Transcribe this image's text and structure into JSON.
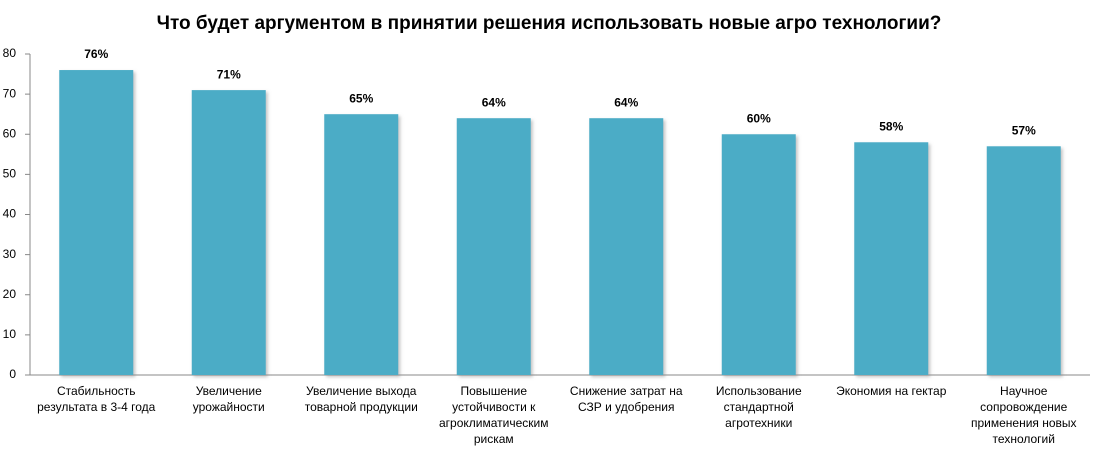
{
  "chart_data": {
    "type": "bar",
    "title": "Что будет аргументом в принятии решения использовать новые агро технологии?",
    "categories": [
      "Стабильность результата в 3-4 года",
      "Увеличение урожайности",
      "Увеличение выхода товарной продукции",
      "Повышение устойчивости к агроклиматическим рискам",
      "Снижение затрат на СЗР и удобрения",
      "Использование стандартной агротехники",
      "Экономия на гектар",
      "Научное сопровождение применения новых технологий"
    ],
    "values": [
      76,
      71,
      65,
      64,
      64,
      60,
      58,
      57
    ],
    "value_labels": [
      "76%",
      "71%",
      "65%",
      "64%",
      "64%",
      "60%",
      "58%",
      "57%"
    ],
    "color": "#4bacc6",
    "ylim": [
      0,
      80
    ],
    "yticks": [
      0,
      10,
      20,
      30,
      40,
      50,
      60,
      70,
      80
    ]
  }
}
